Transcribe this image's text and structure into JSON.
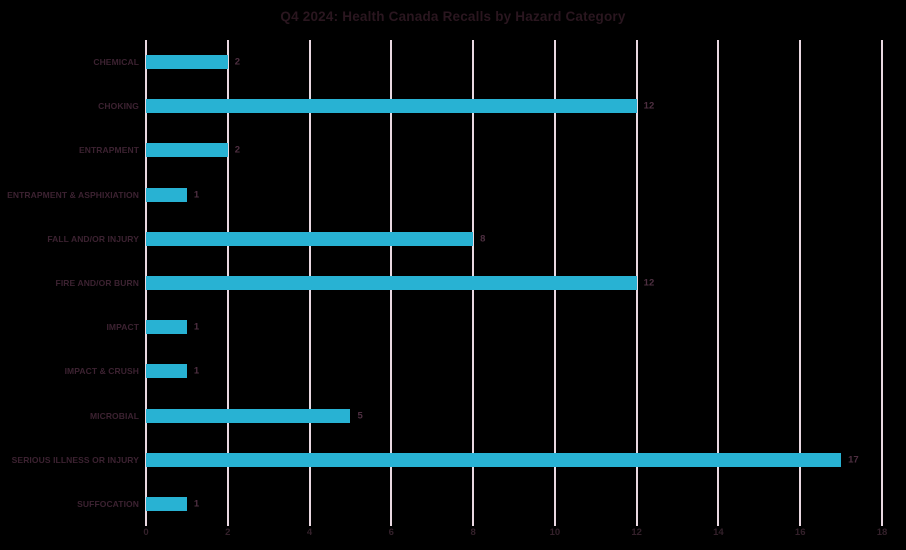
{
  "chart_data": {
    "type": "bar",
    "orientation": "horizontal",
    "title": "Q4 2024: Health Canada Recalls by Hazard Category",
    "categories": [
      "CHEMICAL",
      "CHOKING",
      "ENTRAPMENT",
      "ENTRAPMENT & ASPHIXIATION",
      "FALL AND/OR INJURY",
      "FIRE AND/OR BURN",
      "IMPACT",
      "IMPACT & CRUSH",
      "MICROBIAL",
      "SERIOUS ILLNESS OR INJURY",
      "SUFFOCATION"
    ],
    "values": [
      2,
      12,
      2,
      1,
      8,
      12,
      1,
      1,
      5,
      17,
      1
    ],
    "xlabel": "",
    "ylabel": "",
    "xlim": [
      0,
      18
    ],
    "x_ticks": [
      0,
      2,
      4,
      6,
      8,
      10,
      12,
      14,
      16,
      18
    ],
    "grid": "vertical",
    "legend": "none",
    "bar_value_labels": true,
    "colors": {
      "background": "#000000",
      "bar": "#28b2d3",
      "gridline": "#e9d8e1",
      "title_text": "#2a161f",
      "category_text": "#3c2231",
      "value_text": "#4e2f41",
      "tick_text": "#33202a"
    }
  }
}
